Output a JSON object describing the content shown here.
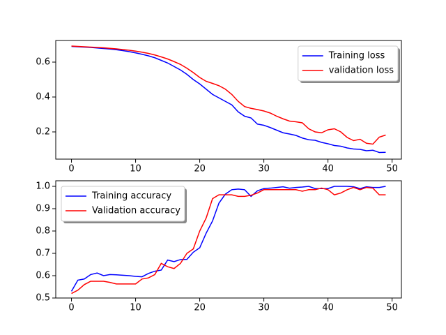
{
  "chart_data": [
    {
      "type": "line",
      "x": [
        0,
        1,
        2,
        3,
        4,
        5,
        6,
        7,
        8,
        9,
        10,
        11,
        12,
        13,
        14,
        15,
        16,
        17,
        18,
        19,
        20,
        21,
        22,
        23,
        24,
        25,
        26,
        27,
        28,
        29,
        30,
        31,
        32,
        33,
        34,
        35,
        36,
        37,
        38,
        39,
        40,
        41,
        42,
        43,
        44,
        45,
        46,
        47,
        48,
        49
      ],
      "xlim": [
        -2.45,
        51.45
      ],
      "xticks": [
        0,
        10,
        20,
        30,
        40,
        50
      ],
      "ylim": [
        0.044,
        0.724
      ],
      "yticks": [
        0.2,
        0.4,
        0.6
      ],
      "legend": "upper right",
      "series": [
        {
          "name": "Training loss",
          "color": "#0000ff",
          "values": [
            0.69,
            0.688,
            0.686,
            0.684,
            0.681,
            0.678,
            0.675,
            0.671,
            0.666,
            0.66,
            0.653,
            0.645,
            0.636,
            0.625,
            0.61,
            0.595,
            0.575,
            0.555,
            0.53,
            0.5,
            0.475,
            0.445,
            0.415,
            0.395,
            0.375,
            0.355,
            0.315,
            0.29,
            0.28,
            0.245,
            0.238,
            0.225,
            0.21,
            0.195,
            0.188,
            0.18,
            0.165,
            0.155,
            0.152,
            0.14,
            0.132,
            0.122,
            0.118,
            0.108,
            0.102,
            0.1,
            0.092,
            0.095,
            0.082,
            0.083
          ]
        },
        {
          "name": "validation loss",
          "color": "#ff0000",
          "values": [
            0.692,
            0.69,
            0.688,
            0.686,
            0.684,
            0.682,
            0.679,
            0.676,
            0.672,
            0.668,
            0.663,
            0.657,
            0.65,
            0.641,
            0.63,
            0.618,
            0.603,
            0.587,
            0.565,
            0.54,
            0.512,
            0.49,
            0.478,
            0.465,
            0.445,
            0.415,
            0.375,
            0.345,
            0.335,
            0.328,
            0.32,
            0.308,
            0.29,
            0.275,
            0.262,
            0.258,
            0.252,
            0.218,
            0.2,
            0.195,
            0.212,
            0.218,
            0.2,
            0.168,
            0.15,
            0.158,
            0.135,
            0.13,
            0.17,
            0.182
          ]
        }
      ]
    },
    {
      "type": "line",
      "x": [
        0,
        1,
        2,
        3,
        4,
        5,
        6,
        7,
        8,
        9,
        10,
        11,
        12,
        13,
        14,
        15,
        16,
        17,
        18,
        19,
        20,
        21,
        22,
        23,
        24,
        25,
        26,
        27,
        28,
        29,
        30,
        31,
        32,
        33,
        34,
        35,
        36,
        37,
        38,
        39,
        40,
        41,
        42,
        43,
        44,
        45,
        46,
        47,
        48,
        49
      ],
      "xlim": [
        -2.45,
        51.45
      ],
      "xticks": [
        0,
        10,
        20,
        30,
        40,
        50
      ],
      "ylim": [
        0.5,
        1.025
      ],
      "yticks": [
        0.5,
        0.6,
        0.7,
        0.8,
        0.9,
        {
          "value": 1,
          "label": "1.0"
        }
      ],
      "legend": "upper left",
      "series": [
        {
          "name": "Training accuracy",
          "color": "#0000ff",
          "values": [
            0.53,
            0.58,
            0.585,
            0.605,
            0.612,
            0.6,
            0.605,
            0.604,
            0.602,
            0.6,
            0.597,
            0.595,
            0.61,
            0.62,
            0.625,
            0.67,
            0.663,
            0.672,
            0.673,
            0.705,
            0.725,
            0.79,
            0.845,
            0.925,
            0.965,
            0.985,
            0.988,
            0.985,
            0.955,
            0.98,
            0.99,
            0.992,
            0.995,
            0.998,
            0.992,
            0.995,
            0.997,
            1.0,
            0.99,
            0.99,
            0.99,
            1.0,
            1.0,
            1.0,
            0.998,
            0.99,
            0.998,
            0.995,
            0.995,
            1.0
          ]
        },
        {
          "name": "Validation accuracy",
          "color": "#ff0000",
          "values": [
            0.52,
            0.535,
            0.56,
            0.575,
            0.575,
            0.575,
            0.57,
            0.563,
            0.563,
            0.563,
            0.563,
            0.585,
            0.59,
            0.605,
            0.655,
            0.64,
            0.632,
            0.655,
            0.7,
            0.72,
            0.8,
            0.858,
            0.945,
            0.962,
            0.962,
            0.962,
            0.955,
            0.955,
            0.96,
            0.97,
            0.985,
            0.985,
            0.985,
            0.985,
            0.985,
            0.985,
            0.978,
            0.985,
            0.985,
            0.992,
            0.985,
            0.962,
            0.97,
            0.985,
            0.995,
            0.985,
            0.995,
            0.992,
            0.962,
            0.962
          ]
        }
      ]
    }
  ]
}
